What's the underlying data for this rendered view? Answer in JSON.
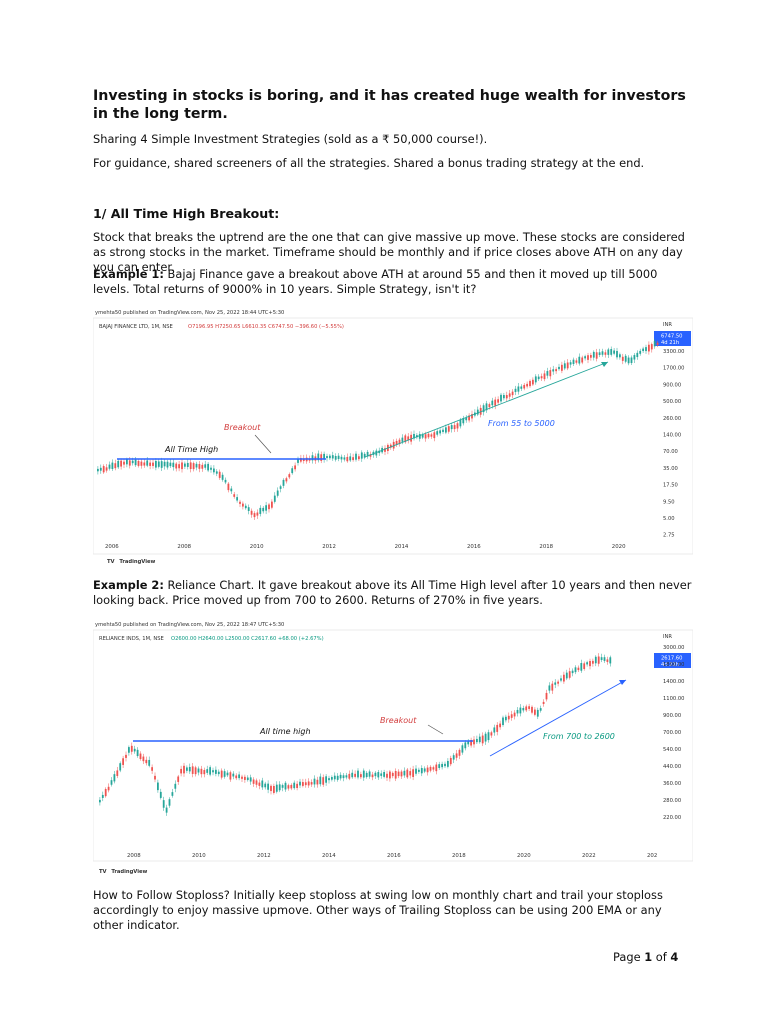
{
  "doc": {
    "title": "Investing in stocks is boring, and it has created huge wealth for investors in the long term.",
    "intro1": "Sharing 4 Simple Investment Strategies (sold as a ₹ 50,000 course!).",
    "intro2": "For guidance, shared screeners of all the strategies. Shared a bonus trading strategy at the end.",
    "section1_heading": "1/ All Time High Breakout:",
    "section1_body": "Stock that breaks the uptrend are the one that can give massive up move. These stocks are considered as strong stocks in the market. Timeframe should be monthly and if price closes above ATH on any day you can enter.",
    "example1_label": "Example 1:",
    "example1_text": " Bajaj Finance gave a breakout above ATH at around 55 and then it moved up till 5000 levels. Total returns of 9000% in 10 years. Simple Strategy, isn't it?",
    "example2_label": "Example 2:",
    "example2_text": " Reliance Chart. It gave breakout above its All Time High level after 10 years and then never looking back. Price moved up from 700 to 2600. Returns of 270% in five years.",
    "stoploss_text": "How to Follow Stoploss? Initially keep stoploss at swing low on monthly chart and trail your stoploss accordingly to enjoy massive upmove. Other ways of Trailing Stoploss can be using 200 EMA or any other indicator.",
    "footer_page": "Page ",
    "footer_num": "1",
    "footer_of": " of ",
    "footer_total": "4"
  },
  "chart1": {
    "published": "ymehta50 published on TradingView.com, Nov 25, 2022 18:44 UTC+5:30",
    "symbol": "BAJAJ FINANCE LTD, 1M, NSE",
    "ohlc": "O7196.95  H7250.65  L6610.35  C6747.50  −396.60 (−5.55%)",
    "currency": "INR",
    "last_price": "6747.50",
    "countdown": "4d 21h",
    "y_ticks": [
      "3300.00",
      "1700.00",
      "900.00",
      "500.00",
      "260.00",
      "140.00",
      "70.00",
      "35.00",
      "17.50",
      "9.50",
      "5.00",
      "2.75"
    ],
    "x_ticks": [
      "2006",
      "2008",
      "2010",
      "2012",
      "2014",
      "2016",
      "2018",
      "2020"
    ],
    "annotation_ath": "All Time High",
    "annotation_breakout": "Breakout",
    "annotation_move": "From 55 to 5000",
    "brand": "TradingView",
    "up_color": "#26a69a",
    "down_color": "#ef5350",
    "line_color": "#2962ff"
  },
  "chart2": {
    "published": "ymehta50 published on TradingView.com, Nov 25, 2022 18:47 UTC+5:30",
    "symbol": "RELIANCE INDS, 1M, NSE",
    "ohlc": "O2600.00  H2640.00  L2500.00  C2617.60  +68.00 (+2.67%)",
    "currency": "INR",
    "last_price": "2617.60",
    "countdown": "4d 21h",
    "y_ticks": [
      "3000.00",
      "1800.00",
      "1400.00",
      "1100.00",
      "900.00",
      "700.00",
      "540.00",
      "440.00",
      "360.00",
      "280.00",
      "220.00"
    ],
    "x_ticks": [
      "2008",
      "2010",
      "2012",
      "2014",
      "2016",
      "2018",
      "2020",
      "2022",
      "202"
    ],
    "annotation_ath": "All time high",
    "annotation_breakout": "Breakout",
    "annotation_move": "From 700 to 2600",
    "brand": "TradingView",
    "up_color": "#26a69a",
    "down_color": "#ef5350",
    "line_color": "#2962ff"
  }
}
